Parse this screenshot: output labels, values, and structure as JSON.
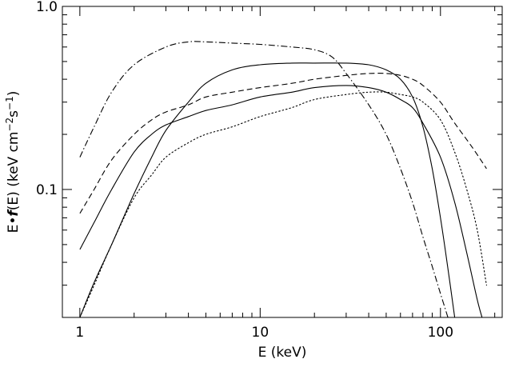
{
  "chart_data": {
    "type": "line",
    "xlabel": "E (keV)",
    "ylabel": "E•f(E) (keV cm⁻²s⁻¹)",
    "ylabel_parts": {
      "prefix": "E•",
      "func": "f",
      "mid": "(E) (keV cm",
      "sup1": "−2",
      "s": "s",
      "sup2": "−1",
      "close": ")"
    },
    "x_scale": "log",
    "y_scale": "log",
    "xlim": [
      0.8,
      220
    ],
    "ylim": [
      0.02,
      1.0
    ],
    "x_ticks": [
      {
        "value": 1,
        "label": "1"
      },
      {
        "value": 10,
        "label": "10"
      },
      {
        "value": 100,
        "label": "100"
      }
    ],
    "y_ticks": [
      {
        "value": 0.1,
        "label": "0.1"
      },
      {
        "value": 1.0,
        "label": "1.0"
      }
    ],
    "grid": false,
    "legend": "none",
    "series": [
      {
        "style": "dashdot",
        "points": [
          [
            1.0,
            0.15
          ],
          [
            1.2,
            0.22
          ],
          [
            1.5,
            0.34
          ],
          [
            2.0,
            0.48
          ],
          [
            3.0,
            0.6
          ],
          [
            4.0,
            0.64
          ],
          [
            5.0,
            0.64
          ],
          [
            7.0,
            0.63
          ],
          [
            10.0,
            0.62
          ],
          [
            15.0,
            0.6
          ],
          [
            20.0,
            0.58
          ],
          [
            25.0,
            0.53
          ],
          [
            30.0,
            0.43
          ],
          [
            40.0,
            0.29
          ],
          [
            50.0,
            0.2
          ],
          [
            60.0,
            0.13
          ],
          [
            70.0,
            0.085
          ],
          [
            80.0,
            0.055
          ],
          [
            90.0,
            0.038
          ],
          [
            100.0,
            0.027
          ],
          [
            110.0,
            0.02
          ]
        ]
      },
      {
        "style": "solid",
        "points": [
          [
            1.0,
            0.02
          ],
          [
            1.2,
            0.031
          ],
          [
            1.5,
            0.05
          ],
          [
            2.0,
            0.095
          ],
          [
            2.5,
            0.15
          ],
          [
            3.0,
            0.21
          ],
          [
            4.0,
            0.3
          ],
          [
            5.0,
            0.38
          ],
          [
            7.0,
            0.45
          ],
          [
            10.0,
            0.48
          ],
          [
            15.0,
            0.49
          ],
          [
            20.0,
            0.49
          ],
          [
            30.0,
            0.49
          ],
          [
            40.0,
            0.48
          ],
          [
            50.0,
            0.45
          ],
          [
            60.0,
            0.4
          ],
          [
            70.0,
            0.32
          ],
          [
            80.0,
            0.22
          ],
          [
            90.0,
            0.13
          ],
          [
            100.0,
            0.07
          ],
          [
            110.0,
            0.037
          ],
          [
            120.0,
            0.02
          ]
        ]
      },
      {
        "style": "dashed",
        "points": [
          [
            1.0,
            0.074
          ],
          [
            1.2,
            0.1
          ],
          [
            1.5,
            0.145
          ],
          [
            2.0,
            0.2
          ],
          [
            2.5,
            0.24
          ],
          [
            3.0,
            0.265
          ],
          [
            4.0,
            0.29
          ],
          [
            5.0,
            0.32
          ],
          [
            7.0,
            0.34
          ],
          [
            10.0,
            0.36
          ],
          [
            15.0,
            0.38
          ],
          [
            20.0,
            0.4
          ],
          [
            30.0,
            0.42
          ],
          [
            40.0,
            0.43
          ],
          [
            50.0,
            0.43
          ],
          [
            60.0,
            0.42
          ],
          [
            70.0,
            0.4
          ],
          [
            80.0,
            0.37
          ],
          [
            100.0,
            0.3
          ],
          [
            120.0,
            0.23
          ],
          [
            150.0,
            0.17
          ],
          [
            180.0,
            0.13
          ]
        ]
      },
      {
        "style": "solid",
        "points": [
          [
            1.0,
            0.047
          ],
          [
            1.2,
            0.066
          ],
          [
            1.5,
            0.1
          ],
          [
            2.0,
            0.16
          ],
          [
            2.5,
            0.2
          ],
          [
            3.0,
            0.225
          ],
          [
            4.0,
            0.25
          ],
          [
            5.0,
            0.27
          ],
          [
            7.0,
            0.29
          ],
          [
            10.0,
            0.32
          ],
          [
            15.0,
            0.34
          ],
          [
            20.0,
            0.36
          ],
          [
            30.0,
            0.37
          ],
          [
            40.0,
            0.36
          ],
          [
            50.0,
            0.34
          ],
          [
            60.0,
            0.31
          ],
          [
            70.0,
            0.28
          ],
          [
            80.0,
            0.23
          ],
          [
            100.0,
            0.15
          ],
          [
            120.0,
            0.085
          ],
          [
            140.0,
            0.045
          ],
          [
            160.0,
            0.025
          ],
          [
            170.0,
            0.02
          ]
        ]
      },
      {
        "style": "dotted",
        "points": [
          [
            1.0,
            0.02
          ],
          [
            1.2,
            0.03
          ],
          [
            1.5,
            0.05
          ],
          [
            2.0,
            0.09
          ],
          [
            2.5,
            0.12
          ],
          [
            3.0,
            0.15
          ],
          [
            4.0,
            0.18
          ],
          [
            5.0,
            0.2
          ],
          [
            7.0,
            0.22
          ],
          [
            10.0,
            0.25
          ],
          [
            15.0,
            0.28
          ],
          [
            20.0,
            0.31
          ],
          [
            30.0,
            0.33
          ],
          [
            40.0,
            0.34
          ],
          [
            50.0,
            0.34
          ],
          [
            60.0,
            0.33
          ],
          [
            70.0,
            0.32
          ],
          [
            80.0,
            0.3
          ],
          [
            100.0,
            0.24
          ],
          [
            120.0,
            0.16
          ],
          [
            140.0,
            0.1
          ],
          [
            160.0,
            0.06
          ],
          [
            180.0,
            0.03
          ]
        ]
      }
    ]
  }
}
